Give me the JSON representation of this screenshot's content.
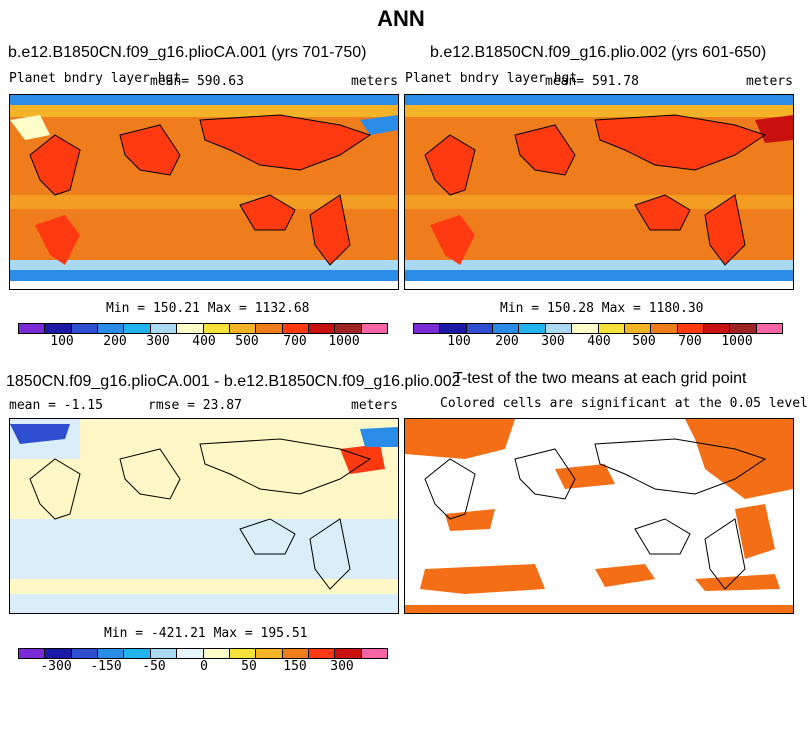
{
  "main_title": "ANN",
  "panel1": {
    "title": "b.e12.B1850CN.f09_g16.plioCA.001 (yrs 701-750)",
    "left_label": "Planet bndry layer hgt",
    "mean_label": "mean= 590.63",
    "unit": "meters",
    "minmax": "Min = 150.21 Max = 1132.68"
  },
  "panel2": {
    "title": "b.e12.B1850CN.f09_g16.plio.002 (yrs 601-650)",
    "left_label": "Planet bndry layer hgt",
    "mean_label": "mean= 591.78",
    "unit": "meters",
    "minmax": "Min = 150.28 Max = 1180.30"
  },
  "panel3": {
    "title": "1850CN.f09_g16.plioCA.001 - b.e12.B1850CN.f09_g16.plio.002",
    "mean_label": "mean = -1.15",
    "rmse_label": "rmse = 23.87",
    "unit": "meters",
    "minmax": "Min = -421.21 Max = 195.51"
  },
  "panel4": {
    "title": "T-test of the two means at each grid point",
    "subtitle": "Colored cells are significant at the 0.05 level"
  },
  "colorbar_abs": {
    "colors": [
      "#7b2bd6",
      "#1a1aa6",
      "#2d4fd0",
      "#2a8ce6",
      "#23b4f0",
      "#a9daf2",
      "#ffffc9",
      "#f7e23c",
      "#f5b428",
      "#f07d1c",
      "#ff3a10",
      "#c8100e",
      "#9e2424",
      "#f765a6"
    ],
    "tick_labels": [
      "100",
      "200",
      "300",
      "400",
      "500",
      "700",
      "1000"
    ]
  },
  "colorbar_diff": {
    "colors": [
      "#7b2bd6",
      "#1a1aa6",
      "#2d4fd0",
      "#2a8ce6",
      "#23b4f0",
      "#a9daf2",
      "#e6f6fb",
      "#ffffc9",
      "#f7e23c",
      "#f5b428",
      "#f07d1c",
      "#ff3a10",
      "#c8100e",
      "#f765a6"
    ],
    "tick_labels": [
      "-300",
      "-150",
      "-50",
      "0",
      "50",
      "150",
      "300"
    ]
  },
  "colors": {
    "ocean_main": "#f07d1c",
    "land_warm": "#ff3a10",
    "ttest": "#f46e16",
    "diff_bg": "#fff7c6",
    "diff_cool": "#d9eef8"
  }
}
